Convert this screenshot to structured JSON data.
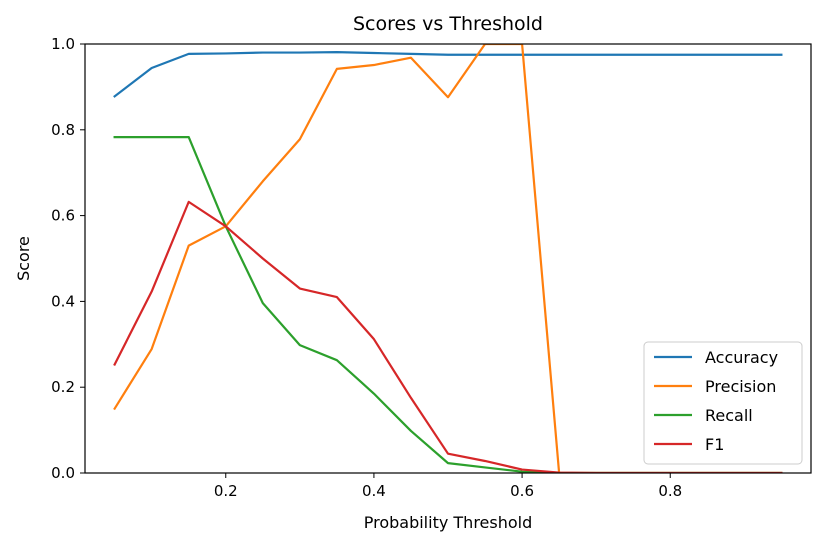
{
  "chart_data": {
    "type": "line",
    "title": "Scores vs Threshold",
    "xlabel": "Probability Threshold",
    "ylabel": "Score",
    "xlim": [
      0.01,
      0.99
    ],
    "ylim": [
      0.0,
      1.0
    ],
    "xticks": [
      0.2,
      0.4,
      0.6,
      0.8
    ],
    "xtick_labels": [
      "0.2",
      "0.4",
      "0.6",
      "0.8"
    ],
    "yticks": [
      0.0,
      0.2,
      0.4,
      0.6,
      0.8,
      1.0
    ],
    "ytick_labels": [
      "0.0",
      "0.2",
      "0.4",
      "0.6",
      "0.8",
      "1.0"
    ],
    "grid": false,
    "legend_position": "bottom-right",
    "x": [
      0.05,
      0.1,
      0.15,
      0.2,
      0.25,
      0.3,
      0.35,
      0.4,
      0.45,
      0.5,
      0.55,
      0.6,
      0.65,
      0.7,
      0.75,
      0.8,
      0.85,
      0.9,
      0.95
    ],
    "series": [
      {
        "name": "Accuracy",
        "color": "#1f77b4",
        "values": [
          0.878,
          0.944,
          0.977,
          0.978,
          0.98,
          0.98,
          0.981,
          0.979,
          0.977,
          0.975,
          0.975,
          0.975,
          0.975,
          0.975,
          0.975,
          0.975,
          0.975,
          0.975,
          0.975
        ]
      },
      {
        "name": "Precision",
        "color": "#ff7f0e",
        "values": [
          0.15,
          0.289,
          0.53,
          0.575,
          0.68,
          0.778,
          0.942,
          0.951,
          0.968,
          0.876,
          1.0,
          1.0,
          0.0,
          0.0,
          0.0,
          0.0,
          0.0,
          0.0,
          0.0
        ]
      },
      {
        "name": "Recall",
        "color": "#2ca02c",
        "values": [
          0.783,
          0.783,
          0.783,
          0.575,
          0.396,
          0.298,
          0.263,
          0.185,
          0.098,
          0.023,
          0.013,
          0.003,
          0.0,
          0.0,
          0.0,
          0.0,
          0.0,
          0.0,
          0.0
        ]
      },
      {
        "name": "F1",
        "color": "#d62728",
        "values": [
          0.253,
          0.423,
          0.632,
          0.575,
          0.5,
          0.43,
          0.41,
          0.312,
          0.175,
          0.045,
          0.028,
          0.008,
          0.001,
          0.0,
          0.0,
          0.0,
          0.0,
          0.0,
          0.0
        ]
      }
    ]
  }
}
